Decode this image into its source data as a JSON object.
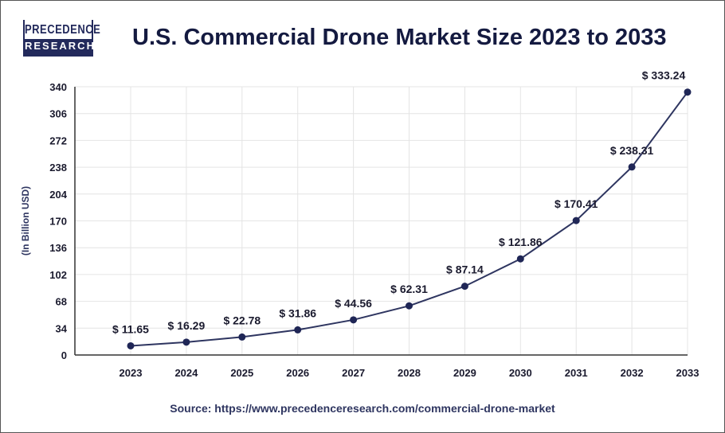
{
  "logo": {
    "line1": "PRECEDENCE",
    "line2": "RESEARCH"
  },
  "title": "U.S. Commercial Drone Market Size 2023 to 2033",
  "source": "Source: https://www.precedenceresearch.com/commercial-drone-market",
  "chart_data": {
    "type": "line",
    "title": "U.S. Commercial Drone Market Size 2023 to 2033",
    "xlabel": "",
    "ylabel": "(In Billion USD)",
    "categories": [
      "2023",
      "2024",
      "2025",
      "2026",
      "2027",
      "2028",
      "2029",
      "2030",
      "2031",
      "2032",
      "2033"
    ],
    "values": [
      11.65,
      16.29,
      22.78,
      31.86,
      44.56,
      62.31,
      87.14,
      121.86,
      170.41,
      238.31,
      333.24
    ],
    "data_labels": [
      "$ 11.65",
      "$ 16.29",
      "$ 22.78",
      "$ 31.86",
      "$ 44.56",
      "$ 62.31",
      "$ 87.14",
      "$ 121.86",
      "$ 170.41",
      "$ 238.31",
      "$ 333.24"
    ],
    "yticks": [
      0,
      34,
      68,
      102,
      136,
      170,
      204,
      238,
      272,
      306,
      340
    ],
    "ylim": [
      0,
      340
    ],
    "grid": true,
    "colors": {
      "line": "#2e3560",
      "marker": "#1f2656",
      "grid": "#e4e4e4",
      "text": "#1a1a2e"
    }
  }
}
